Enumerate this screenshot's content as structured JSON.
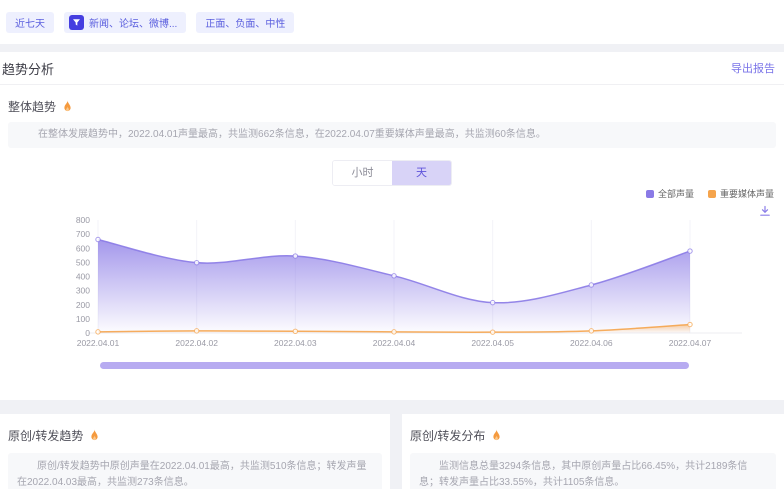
{
  "filters": {
    "chips": [
      {
        "label": "近七天"
      },
      {
        "label": "新闻、论坛、微博...",
        "icon": "funnel-icon"
      },
      {
        "label": "正面、负面、中性"
      }
    ]
  },
  "header": {
    "title": "趋势分析",
    "export_label": "导出报告"
  },
  "overall": {
    "title": "整体趋势",
    "icon": "flame-icon",
    "summary": "在整体发展趋势中，2022.04.01声量最高，共监测662条信息，在2022.04.07重要媒体声量最高，共监测60条信息。",
    "granularity": {
      "options": [
        "小时",
        "天"
      ],
      "selected": "天"
    },
    "download_icon": "download-icon"
  },
  "chart_data": {
    "type": "area",
    "title": "整体趋势",
    "x": [
      "2022.04.01",
      "2022.04.02",
      "2022.04.03",
      "2022.04.04",
      "2022.04.05",
      "2022.04.06",
      "2022.04.07"
    ],
    "series": [
      {
        "name": "全部声量",
        "color": "#8a7ae6",
        "values": [
          662,
          498,
          545,
          405,
          215,
          340,
          580
        ]
      },
      {
        "name": "重要媒体声量",
        "color": "#f5a44c",
        "values": [
          8,
          15,
          12,
          8,
          6,
          15,
          60
        ]
      }
    ],
    "ylim": [
      0,
      800
    ],
    "ytick_step": 100,
    "legend_position": "top-right",
    "grid": "vertical-only",
    "colors": {
      "accent_purple": "#8a7ae6",
      "accent_orange": "#f5a44c",
      "datazoom": "#b7abf1"
    }
  },
  "cards": [
    {
      "title": "原创/转发趋势",
      "icon": "flame-icon",
      "summary": "原创/转发趋势中原创声量在2022.04.01最高，共监测510条信息；转发声量在2022.04.03最高，共监测273条信息。"
    },
    {
      "title": "原创/转发分布",
      "icon": "flame-icon",
      "summary": "监测信息总量3294条信息，其中原创声量占比66.45%，共计2189条信息；转发声量占比33.55%，共计1105条信息。"
    }
  ]
}
